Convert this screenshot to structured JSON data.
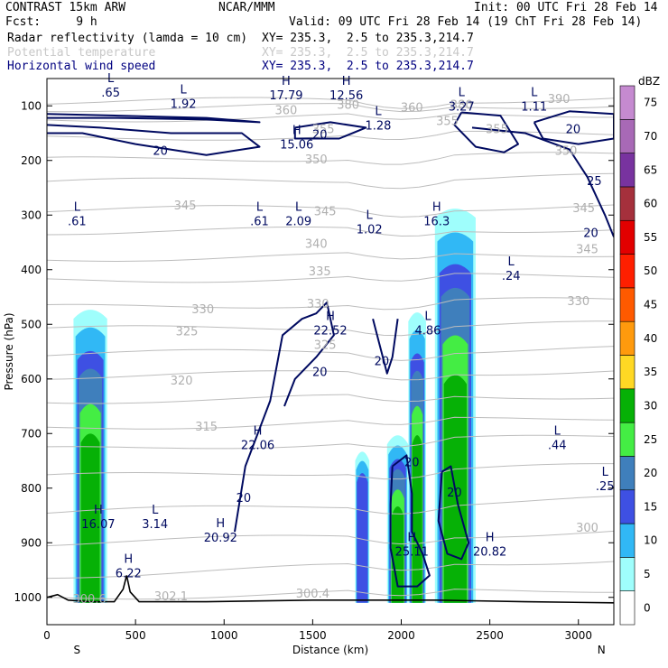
{
  "header": {
    "model": "CONTRAST 15km ARW",
    "center": "NCAR/MMM",
    "init": "Init: 00 UTC Fri 28 Feb 14",
    "fcst": "Fcst:     9 h",
    "valid": "Valid: 09 UTC Fri 28 Feb 14 (19 ChT Fri 28 Feb 14)",
    "fields": [
      {
        "label": "Radar reflectivity (lamda = 10 cm)",
        "xy": "XY= 235.3,  2.5 to 235.3,214.7",
        "color": "#000000"
      },
      {
        "label": "Potential temperature",
        "xy": "XY= 235.3,  2.5 to 235.3,214.7",
        "color": "#c8c8c8"
      },
      {
        "label": "Horizontal wind speed",
        "xy": "XY= 235.3,  2.5 to 235.3,214.7",
        "color": "#000080"
      }
    ]
  },
  "chart_data": {
    "type": "cross-section contour",
    "xlabel": "Distance (km)",
    "ylabel": "Pressure (hPa)",
    "xlim": [
      0,
      3200
    ],
    "ylim": [
      1050,
      50
    ],
    "x_ticks": [
      0,
      500,
      1000,
      1500,
      2000,
      2500,
      3000
    ],
    "y_ticks": [
      100,
      200,
      300,
      400,
      500,
      600,
      700,
      800,
      900,
      1000
    ],
    "x_end_labels": [
      "S",
      "N"
    ],
    "colorbar": {
      "unit": "dBZ",
      "levels": [
        0,
        5,
        10,
        15,
        20,
        25,
        30,
        35,
        40,
        45,
        50,
        55,
        60,
        65,
        70,
        75
      ],
      "colors": [
        "#ffffff",
        "#9ffefc",
        "#31b8f5",
        "#3e50e3",
        "#3f7fbc",
        "#44ed44",
        "#06b106",
        "#ffd824",
        "#ff9a0d",
        "#ff5a00",
        "#ff1f00",
        "#e20000",
        "#a5303c",
        "#78339f",
        "#a869b6",
        "#c58ad0"
      ]
    },
    "theta_labels": [
      {
        "v": "300",
        "x": 3050,
        "p": 880
      },
      {
        "v": "300.4",
        "x": 1500,
        "p": 1000
      },
      {
        "v": "302.1",
        "x": 700,
        "p": 1005
      },
      {
        "v": "300.6",
        "x": 240,
        "p": 1010
      },
      {
        "v": "315",
        "x": 900,
        "p": 695
      },
      {
        "v": "320",
        "x": 760,
        "p": 610
      },
      {
        "v": "325",
        "x": 790,
        "p": 520
      },
      {
        "v": "325",
        "x": 1570,
        "p": 545
      },
      {
        "v": "330",
        "x": 880,
        "p": 480
      },
      {
        "v": "330",
        "x": 1530,
        "p": 470
      },
      {
        "v": "330",
        "x": 3000,
        "p": 465
      },
      {
        "v": "335",
        "x": 1540,
        "p": 410
      },
      {
        "v": "340",
        "x": 1520,
        "p": 360
      },
      {
        "v": "345",
        "x": 1570,
        "p": 300
      },
      {
        "v": "345",
        "x": 3050,
        "p": 370
      },
      {
        "v": "345",
        "x": 780,
        "p": 290
      },
      {
        "v": "350",
        "x": 1520,
        "p": 205
      },
      {
        "v": "355",
        "x": 1560,
        "p": 150
      },
      {
        "v": "355",
        "x": 2260,
        "p": 135
      },
      {
        "v": "360",
        "x": 1350,
        "p": 115
      },
      {
        "v": "360",
        "x": 2060,
        "p": 110
      },
      {
        "v": "380",
        "x": 2340,
        "p": 105
      },
      {
        "v": "390",
        "x": 2890,
        "p": 95
      },
      {
        "v": "380",
        "x": 1700,
        "p": 105
      },
      {
        "v": "350",
        "x": 2930,
        "p": 190
      },
      {
        "v": "355",
        "x": 2540,
        "p": 150
      },
      {
        "v": "345",
        "x": 3030,
        "p": 295
      }
    ],
    "wind_speed_labels": [
      {
        "v": "20",
        "x": 640,
        "p": 190
      },
      {
        "v": "20",
        "x": 1540,
        "p": 160
      },
      {
        "v": "20",
        "x": 2970,
        "p": 150
      },
      {
        "v": "25",
        "x": 3090,
        "p": 245
      },
      {
        "v": "20",
        "x": 3070,
        "p": 340
      },
      {
        "v": "20",
        "x": 1540,
        "p": 595
      },
      {
        "v": "20",
        "x": 1890,
        "p": 575
      },
      {
        "v": "20",
        "x": 1110,
        "p": 825
      },
      {
        "v": "20",
        "x": 2060,
        "p": 760
      },
      {
        "v": "20",
        "x": 2300,
        "p": 815
      }
    ],
    "extrema": [
      {
        "t": "L",
        "v": ".65",
        "x": 360,
        "p": 80
      },
      {
        "t": "L",
        "v": "1.92",
        "x": 770,
        "p": 100
      },
      {
        "t": "H",
        "v": "17.79",
        "x": 1350,
        "p": 85
      },
      {
        "t": "H",
        "v": "12.56",
        "x": 1690,
        "p": 85
      },
      {
        "t": "L",
        "v": "3.27",
        "x": 2340,
        "p": 105
      },
      {
        "t": "L",
        "v": "1.11",
        "x": 2750,
        "p": 105
      },
      {
        "t": "L",
        "v": "1.28",
        "x": 1870,
        "p": 140
      },
      {
        "t": "H",
        "v": "15.06",
        "x": 1410,
        "p": 175
      },
      {
        "t": "L",
        "v": ".61",
        "x": 170,
        "p": 315
      },
      {
        "t": "L",
        "v": ".61",
        "x": 1200,
        "p": 315
      },
      {
        "t": "L",
        "v": "2.09",
        "x": 1420,
        "p": 315
      },
      {
        "t": "L",
        "v": "1.02",
        "x": 1820,
        "p": 330
      },
      {
        "t": "H",
        "v": "16.3",
        "x": 2200,
        "p": 315
      },
      {
        "t": "L",
        "v": ".24",
        "x": 2620,
        "p": 415
      },
      {
        "t": "H",
        "v": "22.52",
        "x": 1600,
        "p": 515
      },
      {
        "t": "L",
        "v": "4.86",
        "x": 2150,
        "p": 515
      },
      {
        "t": "H",
        "v": "22.06",
        "x": 1190,
        "p": 725
      },
      {
        "t": "L",
        "v": ".44",
        "x": 2880,
        "p": 725
      },
      {
        "t": "H",
        "v": "16.07",
        "x": 290,
        "p": 870
      },
      {
        "t": "L",
        "v": "3.14",
        "x": 610,
        "p": 870
      },
      {
        "t": "H",
        "v": "20.92",
        "x": 980,
        "p": 895
      },
      {
        "t": "H",
        "v": "6.22",
        "x": 460,
        "p": 960
      },
      {
        "t": "H",
        "v": "25.11",
        "x": 2060,
        "p": 920
      },
      {
        "t": "H",
        "v": "20.82",
        "x": 2500,
        "p": 920
      },
      {
        "t": "L",
        "v": ".25",
        "x": 3150,
        "p": 800
      }
    ],
    "reflectivity_cells": [
      {
        "x0": 150,
        "x1": 340,
        "top": 470,
        "core": [
          200,
          300
        ]
      },
      {
        "x0": 1740,
        "x1": 1820,
        "top": 730,
        "core": []
      },
      {
        "x0": 1920,
        "x1": 2040,
        "top": 700,
        "core": [
          1970,
          2030
        ]
      },
      {
        "x0": 2040,
        "x1": 2140,
        "top": 475,
        "core": [
          2060,
          2120
        ]
      },
      {
        "x0": 2190,
        "x1": 2420,
        "top": 285,
        "core": [
          2240,
          2380
        ]
      }
    ]
  }
}
